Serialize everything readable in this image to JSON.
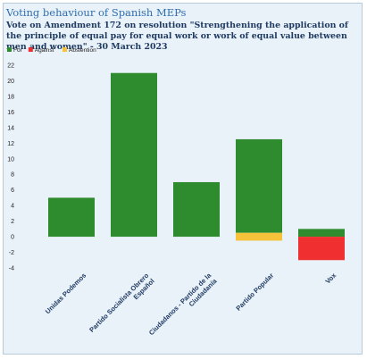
{
  "header": {
    "title": "Voting behaviour of Spanish MEPs",
    "subtitle": "Vote on Amendment 172 on resolution \"Strengthening the application of the principle of equal pay for equal work or work of equal value between men and women\" - 30 March 2023"
  },
  "chart_data": {
    "type": "bar",
    "stacked": true,
    "categories": [
      [
        "Unidas Podemos"
      ],
      [
        "Partido Socialista Obrero",
        "Español"
      ],
      [
        "Ciudadanos - Partido de la",
        "Ciudadanía"
      ],
      [
        "Partido Popular"
      ],
      [
        "Vox"
      ]
    ],
    "series": [
      {
        "name": "For",
        "color": "#2e8b2e",
        "values": [
          5,
          21,
          7,
          12,
          1
        ]
      },
      {
        "name": "Against",
        "color": "#f03030",
        "values": [
          0,
          0,
          0,
          0,
          -3
        ]
      },
      {
        "name": "Abstention",
        "color": "#f5c23a",
        "values": [
          0,
          0,
          0,
          -1,
          0
        ]
      }
    ],
    "segments": [
      [
        {
          "series": 0,
          "from": 0,
          "to": 5
        }
      ],
      [
        {
          "series": 0,
          "from": 0,
          "to": 21
        }
      ],
      [
        {
          "series": 0,
          "from": 0,
          "to": 7
        }
      ],
      [
        {
          "series": 0,
          "from": 0.5,
          "to": 12.5
        },
        {
          "series": 2,
          "from": -0.5,
          "to": 0.5
        }
      ],
      [
        {
          "series": 0,
          "from": 0,
          "to": 1
        },
        {
          "series": 1,
          "from": -3,
          "to": 0
        }
      ]
    ],
    "ylim": [
      -4,
      22
    ],
    "yticks": [
      -4,
      -2,
      0,
      2,
      4,
      6,
      8,
      10,
      12,
      14,
      16,
      18,
      20,
      22
    ],
    "grid": false,
    "legend_position": "top-left"
  }
}
